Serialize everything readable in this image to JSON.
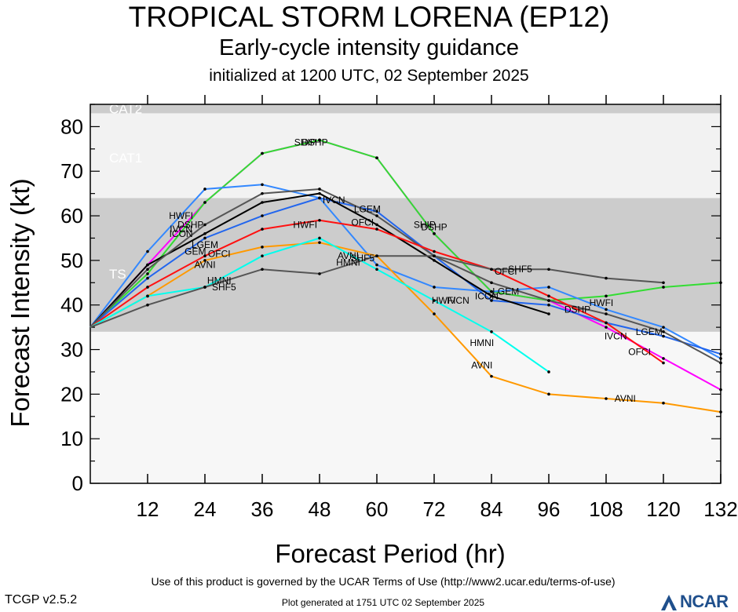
{
  "header": {
    "title": "TROPICAL STORM LORENA (EP12)",
    "subtitle": "Early-cycle intensity guidance",
    "initialized": "initialized at 1200 UTC, 02 September 2025"
  },
  "footer": {
    "version": "TCGP v2.5.2",
    "terms": "Use of this product is governed by the UCAR Terms of Use (http://www2.ucar.edu/terms-of-use)",
    "generated": "Plot generated at 1751 UTC   02 September 2025",
    "logo_text": "NCAR"
  },
  "chart_data": {
    "type": "line",
    "title": "TROPICAL STORM LORENA (EP12)",
    "xlabel": "Forecast Period (hr)",
    "ylabel": "Forecast Intensity (kt)",
    "xlim": [
      0,
      132
    ],
    "ylim": [
      0,
      85
    ],
    "xticks": [
      12,
      24,
      36,
      48,
      60,
      72,
      84,
      96,
      108,
      120,
      132
    ],
    "yticks": [
      0,
      10,
      20,
      30,
      40,
      50,
      60,
      70,
      80
    ],
    "bands": [
      {
        "label": "TS",
        "from": 34,
        "to": 64,
        "color": "#cccccc"
      },
      {
        "label": "CAT1",
        "from": 64,
        "to": 83,
        "color": "#f2f2f2"
      },
      {
        "label": "CAT2",
        "from": 83,
        "to": 85,
        "color": "#cccccc"
      }
    ],
    "series": [
      {
        "name": "SHIP",
        "color": "#ff00ff",
        "x": [
          0,
          12,
          24,
          36,
          48,
          60,
          72,
          84,
          96,
          108,
          120,
          132
        ],
        "y": [
          35,
          49,
          63,
          74,
          77,
          73,
          56,
          43,
          41,
          35,
          28,
          21
        ],
        "labels": [
          {
            "x": 45,
            "y": 76.5
          },
          {
            "x": 70,
            "y": 58
          }
        ]
      },
      {
        "name": "DSHP",
        "color": "#33dd33",
        "x": [
          0,
          12,
          24,
          36,
          48,
          60,
          72,
          84,
          96,
          108,
          120,
          132
        ],
        "y": [
          35,
          47,
          63,
          74,
          77,
          73,
          56,
          43,
          41,
          42,
          44,
          45
        ],
        "labels": [
          {
            "x": 47,
            "y": 76.5
          },
          {
            "x": 72,
            "y": 57.5
          }
        ]
      },
      {
        "name": "HWFI",
        "color": "#3388ff",
        "x": [
          0,
          12,
          24,
          36,
          48,
          60,
          72,
          84,
          96,
          108,
          120,
          132
        ],
        "y": [
          35,
          52,
          66,
          67,
          64,
          49,
          44,
          43,
          44,
          39,
          35,
          28
        ],
        "labels": [
          {
            "x": 19,
            "y": 60
          },
          {
            "x": 45,
            "y": 58
          },
          {
            "x": 74,
            "y": 41
          },
          {
            "x": 107,
            "y": 40.5
          }
        ]
      },
      {
        "name": "LGEM",
        "color": "#2266ee",
        "x": [
          0,
          12,
          24,
          36,
          48,
          60,
          72,
          84,
          96,
          108,
          120,
          132
        ],
        "y": [
          35,
          46,
          55,
          60,
          64,
          61,
          51,
          41,
          40,
          36,
          33,
          29
        ],
        "labels": [
          {
            "x": 58,
            "y": 61.5
          },
          {
            "x": 24,
            "y": 53.5
          },
          {
            "x": 87,
            "y": 43
          },
          {
            "x": 117,
            "y": 34
          }
        ]
      },
      {
        "name": "ICON",
        "color": "#000000",
        "x": [
          0,
          12,
          24,
          36,
          48,
          60,
          72,
          84,
          96
        ],
        "y": [
          35,
          49,
          56,
          63,
          65,
          58,
          50,
          42,
          38
        ],
        "labels": [
          {
            "x": 19,
            "y": 56
          },
          {
            "x": 83,
            "y": 42
          }
        ]
      },
      {
        "name": "IVCN",
        "color": "#555555",
        "x": [
          0,
          12,
          24,
          36,
          48,
          60,
          72,
          84,
          96,
          108,
          120,
          132
        ],
        "y": [
          35,
          48,
          58,
          65,
          66,
          60,
          51,
          45,
          41,
          38,
          34,
          27
        ],
        "labels": [
          {
            "x": 19,
            "y": 57
          },
          {
            "x": 51,
            "y": 63.5
          },
          {
            "x": 77,
            "y": 41
          },
          {
            "x": 110,
            "y": 33
          }
        ]
      },
      {
        "name": "OFCI",
        "color": "#ff1111",
        "x": [
          0,
          12,
          24,
          36,
          48,
          60,
          72,
          84,
          96,
          108,
          120
        ],
        "y": [
          35,
          44,
          51,
          57,
          59,
          57,
          52,
          48,
          42,
          36,
          27
        ],
        "labels": [
          {
            "x": 57,
            "y": 58.5
          },
          {
            "x": 27,
            "y": 51.5
          },
          {
            "x": 87,
            "y": 47.5
          },
          {
            "x": 115,
            "y": 29.5
          }
        ]
      },
      {
        "name": "GEM",
        "color": "#000000",
        "x": [],
        "y": [],
        "labels": [
          {
            "x": 22,
            "y": 52
          }
        ]
      },
      {
        "name": "DSHP",
        "color": "#000000",
        "x": [],
        "y": [],
        "labels": [
          {
            "x": 21,
            "y": 58
          },
          {
            "x": 102,
            "y": 39
          }
        ]
      },
      {
        "name": "AVNI",
        "color": "#ff9900",
        "x": [
          0,
          12,
          24,
          36,
          48,
          60,
          72,
          84,
          96,
          108,
          120,
          132
        ],
        "y": [
          35,
          42,
          50,
          53,
          54,
          51,
          38,
          24,
          20,
          19,
          18,
          16
        ],
        "labels": [
          {
            "x": 24,
            "y": 49
          },
          {
            "x": 82,
            "y": 26.5
          },
          {
            "x": 112,
            "y": 19
          },
          {
            "x": 54,
            "y": 51
          }
        ]
      },
      {
        "name": "HMNI",
        "color": "#00ffee",
        "x": [
          0,
          12,
          24,
          36,
          48,
          60,
          72,
          84,
          96
        ],
        "y": [
          35,
          42,
          44,
          51,
          55,
          48,
          41,
          34,
          25
        ],
        "labels": [
          {
            "x": 27,
            "y": 45.5
          },
          {
            "x": 54,
            "y": 49.5
          },
          {
            "x": 82,
            "y": 31.5
          }
        ]
      },
      {
        "name": "SHF5",
        "color": "#555555",
        "x": [
          0,
          12,
          24,
          36,
          48,
          60,
          72,
          84,
          96,
          108,
          120
        ],
        "y": [
          35,
          40,
          44,
          48,
          47,
          51,
          51,
          48,
          48,
          46,
          45
        ],
        "labels": [
          {
            "x": 28,
            "y": 44
          },
          {
            "x": 57,
            "y": 50.5
          },
          {
            "x": 90,
            "y": 48
          }
        ]
      }
    ]
  }
}
